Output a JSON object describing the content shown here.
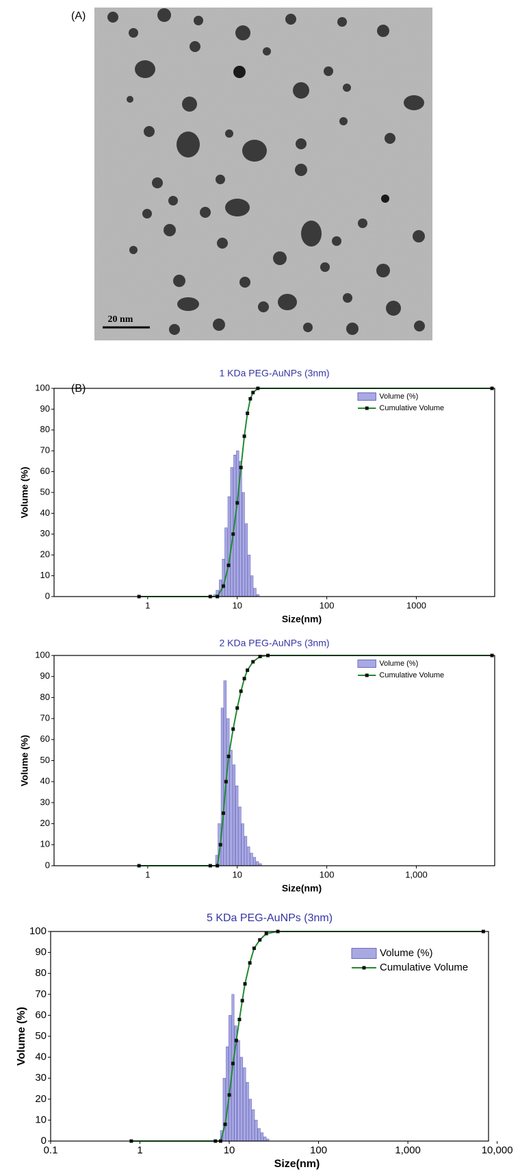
{
  "panel_a": {
    "label": "(A)",
    "scale_bar": "20 nm"
  },
  "panel_b": {
    "label": "(B)"
  },
  "chart_data": [
    {
      "type": "histogram_cumulative",
      "title": "1 KDa PEG-AuNPs (3nm)",
      "x_label": "Size(nm)",
      "y_label": "Volume (%)",
      "x_scale": "log",
      "xlim": [
        0.09,
        7500
      ],
      "xticks": [
        1,
        10,
        100,
        1000
      ],
      "ylim": [
        0,
        100
      ],
      "yticks": [
        0,
        10,
        20,
        30,
        40,
        50,
        60,
        70,
        80,
        90,
        100
      ],
      "legend": "upper right",
      "series": [
        {
          "name": "Volume (%)",
          "color": "#a9a9e2",
          "x": [
            5.6,
            6.0,
            6.5,
            7.0,
            7.5,
            8.1,
            8.7,
            9.4,
            10.1,
            10.9,
            11.7,
            12.6,
            13.6,
            14.6,
            15.7,
            17.0
          ],
          "values": [
            1,
            3,
            8,
            18,
            33,
            48,
            62,
            68,
            70,
            65,
            50,
            35,
            20,
            10,
            4,
            1
          ]
        },
        {
          "name": "Cumulative Volume",
          "color": "#1f8a2e",
          "x": [
            0.8,
            5,
            6,
            7,
            8,
            9,
            10,
            11,
            12,
            13,
            14,
            15,
            17,
            7000
          ],
          "values": [
            0,
            0,
            0,
            5,
            15,
            30,
            45,
            62,
            77,
            88,
            95,
            98,
            100,
            100
          ]
        }
      ]
    },
    {
      "type": "histogram_cumulative",
      "title": "2 KDa PEG-AuNPs (3nm)",
      "x_label": "Size(nm)",
      "y_label": "Volume (%)",
      "x_scale": "log",
      "xlim": [
        0.09,
        7500
      ],
      "xticks": [
        1,
        10,
        100,
        {
          "value": 1000,
          "label": "1,000"
        }
      ],
      "ylim": [
        0,
        100
      ],
      "yticks": [
        0,
        10,
        20,
        30,
        40,
        50,
        60,
        70,
        80,
        90,
        100
      ],
      "legend": "upper right",
      "series": [
        {
          "name": "Volume (%)",
          "color": "#a9a9e2",
          "x": [
            5.9,
            6.3,
            6.8,
            7.3,
            7.9,
            8.5,
            9.2,
            9.9,
            10.7,
            11.5,
            12.4,
            13.4,
            14.4,
            15.6,
            16.8,
            18.1
          ],
          "values": [
            5,
            20,
            75,
            88,
            70,
            55,
            48,
            38,
            28,
            20,
            14,
            9,
            6,
            4,
            2,
            1
          ]
        },
        {
          "name": "Cumulative Volume",
          "color": "#1f8a2e",
          "x": [
            0.8,
            5,
            6,
            6.5,
            7,
            7.5,
            8,
            9,
            10,
            11,
            12,
            13,
            15,
            18,
            22,
            7000
          ],
          "values": [
            0,
            0,
            0,
            10,
            25,
            40,
            52,
            65,
            75,
            83,
            89,
            93,
            97,
            99.5,
            100,
            100
          ]
        }
      ]
    },
    {
      "type": "histogram_cumulative",
      "title": "5 KDa PEG-AuNPs (3nm)",
      "x_label": "Size(nm)",
      "y_label": "Volume (%)",
      "x_scale": "log",
      "xlim": [
        0.1,
        8000
      ],
      "xticks": [
        0.1,
        1,
        10,
        100,
        {
          "value": 1000,
          "label": "1,000"
        },
        {
          "value": 10000,
          "label": "10,000"
        }
      ],
      "ylim": [
        0,
        100
      ],
      "yticks": [
        0,
        10,
        20,
        30,
        40,
        50,
        60,
        70,
        80,
        90,
        100
      ],
      "legend": "upper right",
      "series": [
        {
          "name": "Volume (%)",
          "color": "#a9a9e2",
          "x": [
            8.2,
            8.8,
            9.5,
            10.2,
            11,
            11.8,
            12.7,
            13.7,
            14.8,
            16,
            17.2,
            18.6,
            20,
            21.6,
            23.3,
            25.1,
            27
          ],
          "values": [
            5,
            30,
            45,
            60,
            70,
            55,
            48,
            40,
            35,
            28,
            20,
            15,
            10,
            6,
            4,
            2,
            1
          ]
        },
        {
          "name": "Cumulative Volume",
          "color": "#1f8a2e",
          "x": [
            0.8,
            7,
            8,
            9,
            10,
            11,
            12,
            13,
            14,
            15,
            17,
            19,
            22,
            26,
            35,
            7000
          ],
          "values": [
            0,
            0,
            0,
            8,
            22,
            37,
            48,
            58,
            67,
            75,
            85,
            92,
            96,
            99,
            100,
            100
          ]
        }
      ]
    }
  ]
}
